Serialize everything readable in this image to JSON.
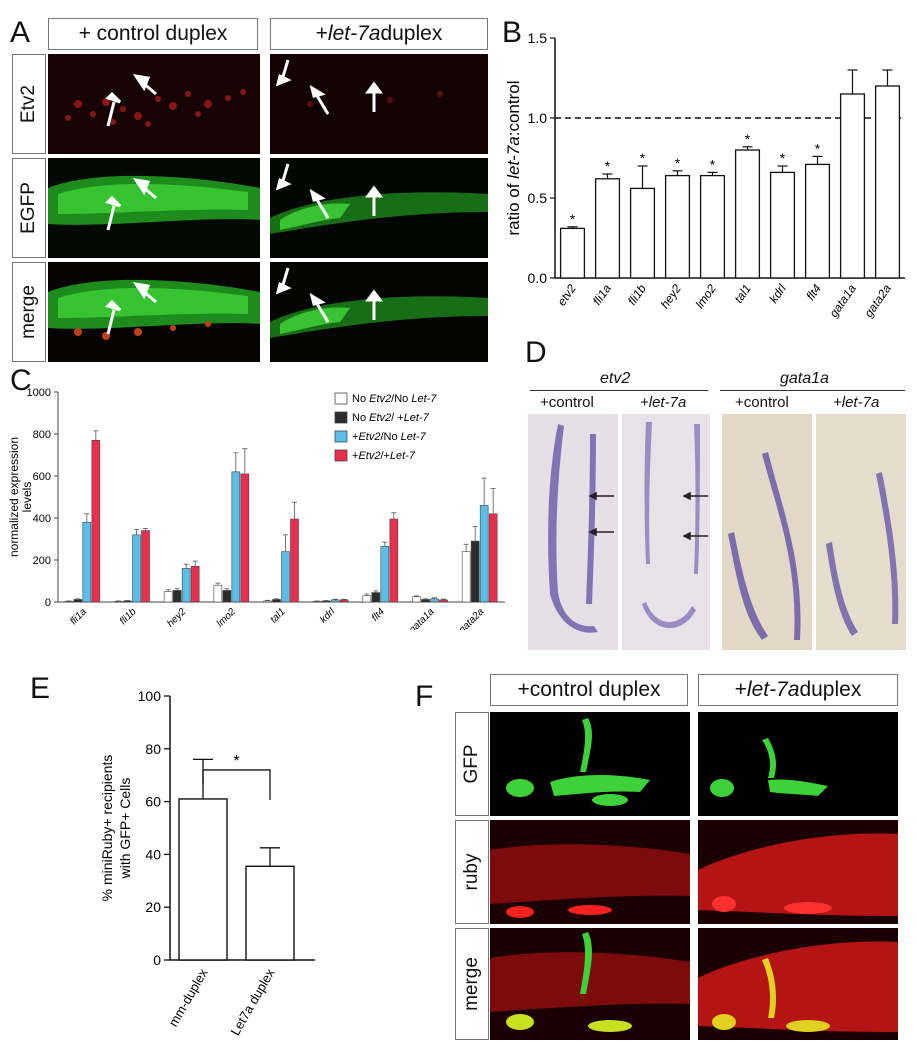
{
  "panels": {
    "A": "A",
    "B": "B",
    "C": "C",
    "D": "D",
    "E": "E",
    "F": "F"
  },
  "panelA": {
    "col1": "+ control duplex",
    "col2_prefix": "+",
    "col2_italic": "let-7a",
    "col2_suffix": " duplex",
    "rows": [
      "Etv2",
      "EGFP",
      "merge"
    ]
  },
  "panelD": {
    "gene1": "etv2",
    "gene2": "gata1a",
    "control": "+control",
    "treat": "+let-7a"
  },
  "panelF": {
    "col1": "+control duplex",
    "col2_prefix": "+",
    "col2_italic": "let-7a",
    "col2_suffix": " duplex",
    "rows": [
      "GFP",
      "ruby",
      "merge"
    ]
  },
  "colors": {
    "red": "#e8304e",
    "blue": "#5bbde8",
    "dark": "#2c2c2c",
    "white": "#ffffff",
    "green": "#3ed13a"
  },
  "chart_data": [
    {
      "id": "B",
      "type": "bar",
      "ylabel": "ratio of let-7a:control",
      "ylim": [
        0.0,
        1.5
      ],
      "yticks": [
        "0.0",
        "0.5",
        "1.0",
        "1.5"
      ],
      "reference_line": 1.0,
      "categories": [
        "etv2",
        "fli1a",
        "fli1b",
        "hey2",
        "lmo2",
        "tal1",
        "kdrl",
        "flt4",
        "gata1a",
        "gata2a"
      ],
      "values": [
        0.31,
        0.62,
        0.56,
        0.64,
        0.64,
        0.8,
        0.66,
        0.71,
        1.15,
        1.2
      ],
      "errors": [
        0.01,
        0.03,
        0.14,
        0.03,
        0.02,
        0.02,
        0.04,
        0.05,
        0.15,
        0.1
      ],
      "significant": [
        "*",
        "*",
        "*",
        "*",
        "*",
        "*",
        "*",
        "*",
        "",
        ""
      ]
    },
    {
      "id": "C",
      "type": "bar",
      "ylabel": "normalized expression levels",
      "ylim": [
        0,
        1000
      ],
      "yticks": [
        "0",
        "200",
        "400",
        "600",
        "800",
        "1000"
      ],
      "categories": [
        "fli1a",
        "fli1b",
        "hey2",
        "lmo2",
        "tal1",
        "kdrl",
        "flt4",
        "gata1a",
        "gata2a"
      ],
      "legend": [
        "No Etv2/No Let-7",
        "No Etv2/ +Let-7",
        "+Etv2/No Let-7",
        "+Etv2/+Let-7"
      ],
      "series": [
        {
          "name": "No Etv2/No Let-7",
          "values": [
            3,
            3,
            50,
            80,
            5,
            3,
            30,
            25,
            240
          ],
          "errors": [
            2,
            2,
            8,
            10,
            3,
            2,
            8,
            4,
            35
          ]
        },
        {
          "name": "No Etv2/ +Let-7",
          "values": [
            12,
            5,
            55,
            55,
            12,
            5,
            45,
            12,
            290
          ],
          "errors": [
            3,
            2,
            8,
            8,
            3,
            2,
            8,
            3,
            70
          ]
        },
        {
          "name": "+Etv2/No Let-7",
          "values": [
            380,
            320,
            160,
            620,
            240,
            10,
            265,
            15,
            460
          ],
          "errors": [
            40,
            25,
            20,
            90,
            80,
            3,
            20,
            5,
            130
          ]
        },
        {
          "name": "+Etv2/+Let-7",
          "values": [
            770,
            340,
            170,
            610,
            395,
            10,
            395,
            10,
            420
          ],
          "errors": [
            45,
            10,
            25,
            120,
            80,
            3,
            30,
            4,
            120
          ]
        }
      ]
    },
    {
      "id": "E",
      "type": "bar",
      "ylabel": "% miniRuby+ recipients with GFP+ Cells",
      "ylim": [
        0,
        100
      ],
      "yticks": [
        "0",
        "20",
        "40",
        "60",
        "80",
        "100"
      ],
      "categories": [
        "mm-duplex",
        "Let7a duplex"
      ],
      "values": [
        61,
        35.5
      ],
      "errors": [
        15,
        7
      ],
      "significance": "*"
    }
  ]
}
